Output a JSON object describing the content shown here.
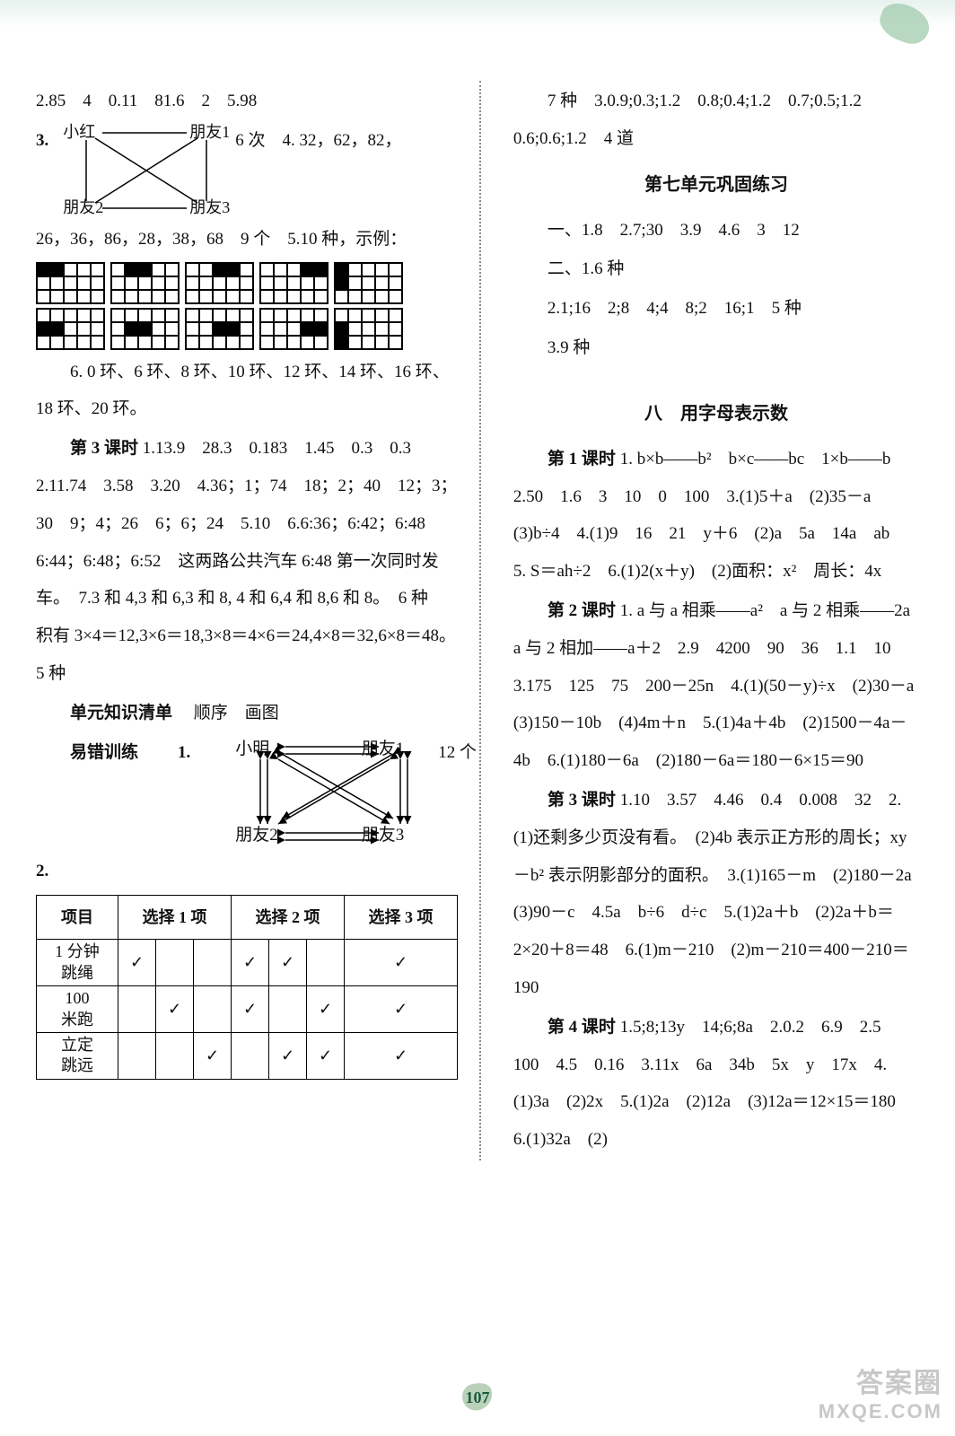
{
  "page_number": "107",
  "watermark": {
    "line1": "答案圈",
    "line2": "MXQE.COM"
  },
  "left": {
    "p1": "2.85　4　0.11　81.6　2　5.98",
    "p2_prefix": "3.",
    "friend": {
      "tl": "小红",
      "tr": "朋友1",
      "bl": "朋友2",
      "br": "朋友3"
    },
    "p2_after": "6 次　4. 32，62，82，",
    "p3": "26，36，86，28，38，68　9 个　5.10 种，示例：",
    "p4": "6. 0 环、6 环、8 环、10 环、12 环、14 环、16 环、18 环、20 环。",
    "p5_label": "第 3 课时",
    "p5": "1.13.9　28.3　0.183　1.45　0.3　0.3　2.11.74　3.58　3.20　4.36；1；74　18；2；40　12；3；30　9；4；26　6；6；24　5.10　6.6:36；6:42；6:48　6:44；6:48；6:52　这两路公共汽车 6:48 第一次同时发车。　7.3 和 4,3 和 6,3 和 8, 4 和 6,4 和 8,6 和 8。　6 种　积有 3×4＝12,3×6＝18,3×8＝4×6＝24,4×8＝32,6×8＝48。　5 种",
    "p6_label": "单元知识清单",
    "p6": "顺序　画图",
    "p7_label": "易错训练",
    "p7_prefix": "1.",
    "friend2": {
      "tl": "小明",
      "tr": "朋友1",
      "bl": "朋友2",
      "br": "朋友3"
    },
    "p7_after": "12 个",
    "p8": "2.",
    "table": {
      "header": [
        "项目",
        "选择 1 项",
        "选择 2 项",
        "选择 3 项"
      ],
      "col_groups": [
        1,
        3,
        3,
        1
      ],
      "rows": [
        {
          "label": "1 分钟\n跳绳",
          "cells": [
            "✓",
            "",
            "",
            "✓",
            "✓",
            "",
            "✓"
          ]
        },
        {
          "label": "100\n米跑",
          "cells": [
            "",
            "✓",
            "",
            "✓",
            "",
            "✓",
            "✓"
          ]
        },
        {
          "label": "立定\n跳远",
          "cells": [
            "",
            "",
            "✓",
            "",
            "✓",
            "✓",
            "✓"
          ]
        }
      ]
    },
    "grid_patterns_row1": [
      [
        [
          1,
          1,
          0,
          0,
          0
        ],
        [
          0,
          0,
          0,
          0,
          0
        ],
        [
          0,
          0,
          0,
          0,
          0
        ]
      ],
      [
        [
          0,
          1,
          1,
          0,
          0
        ],
        [
          0,
          0,
          0,
          0,
          0
        ],
        [
          0,
          0,
          0,
          0,
          0
        ]
      ],
      [
        [
          0,
          0,
          1,
          1,
          0
        ],
        [
          0,
          0,
          0,
          0,
          0
        ],
        [
          0,
          0,
          0,
          0,
          0
        ]
      ],
      [
        [
          0,
          0,
          0,
          1,
          1
        ],
        [
          0,
          0,
          0,
          0,
          0
        ],
        [
          0,
          0,
          0,
          0,
          0
        ]
      ],
      [
        [
          1,
          0,
          0,
          0,
          0
        ],
        [
          1,
          0,
          0,
          0,
          0
        ],
        [
          0,
          0,
          0,
          0,
          0
        ]
      ]
    ],
    "grid_patterns_row2": [
      [
        [
          0,
          0,
          0,
          0,
          0
        ],
        [
          1,
          1,
          0,
          0,
          0
        ],
        [
          0,
          0,
          0,
          0,
          0
        ]
      ],
      [
        [
          0,
          0,
          0,
          0,
          0
        ],
        [
          0,
          1,
          1,
          0,
          0
        ],
        [
          0,
          0,
          0,
          0,
          0
        ]
      ],
      [
        [
          0,
          0,
          0,
          0,
          0
        ],
        [
          0,
          0,
          1,
          1,
          0
        ],
        [
          0,
          0,
          0,
          0,
          0
        ]
      ],
      [
        [
          0,
          0,
          0,
          0,
          0
        ],
        [
          0,
          0,
          0,
          1,
          1
        ],
        [
          0,
          0,
          0,
          0,
          0
        ]
      ],
      [
        [
          0,
          0,
          0,
          0,
          0
        ],
        [
          1,
          0,
          0,
          0,
          0
        ],
        [
          1,
          0,
          0,
          0,
          0
        ]
      ]
    ]
  },
  "right": {
    "p1": "7 种　3.0.9;0.3;1.2　0.8;0.4;1.2　0.7;0.5;1.2　0.6;0.6;1.2　4 道",
    "h1": "第七单元巩固练习",
    "p2": "一、1.8　2.7;30　3.9　4.6　3　12",
    "p3": "二、1.6 种",
    "p4": "2.1;16　2;8　4;4　8;2　16;1　5 种",
    "p5": "3.9 种",
    "h2": "八　用字母表示数",
    "s1_label": "第 1 课时",
    "s1": "1. b×b——b²　b×c——bc　1×b——b　2.50　1.6　3　10　0　100　3.(1)5＋a　(2)35－a　(3)b÷4　4.(1)9　16　21　y＋6　(2)a　5a　14a　ab　5. S＝ah÷2　6.(1)2(x＋y)　(2)面积：x²　周长：4x",
    "s2_label": "第 2 课时",
    "s2": "1. a 与 a 相乘——a²　a 与 2 相乘——2a　a 与 2 相加——a＋2　2.9　4200　90　36　1.1　10　3.175　125　75　200－25n　4.(1)(50－y)÷x　(2)30－a　(3)150－10b　(4)4m＋n　5.(1)4a＋4b　(2)1500－4a－4b　6.(1)180－6a　(2)180－6a＝180－6×15＝90",
    "s3_label": "第 3 课时",
    "s3": "1.10　3.57　4.46　0.4　0.008　32　2.(1)还剩多少页没有看。　(2)4b 表示正方形的周长；xy－b² 表示阴影部分的面积。　3.(1)165－m　(2)180－2a　(3)90－c　4.5a　b÷6　d÷c　5.(1)2a＋b　(2)2a＋b＝2×20＋8＝48　6.(1)m－210　(2)m－210＝400－210＝190",
    "s4_label": "第 4 课时",
    "s4": "1.5;8;13y　14;6;8a　2.0.2　6.9　2.5　100　4.5　0.16　3.11x　6a　34b　5x　y　17x　4.(1)3a　(2)2x　5.(1)2a　(2)12a　(3)12a＝12×15＝180　6.(1)32a　(2)"
  }
}
